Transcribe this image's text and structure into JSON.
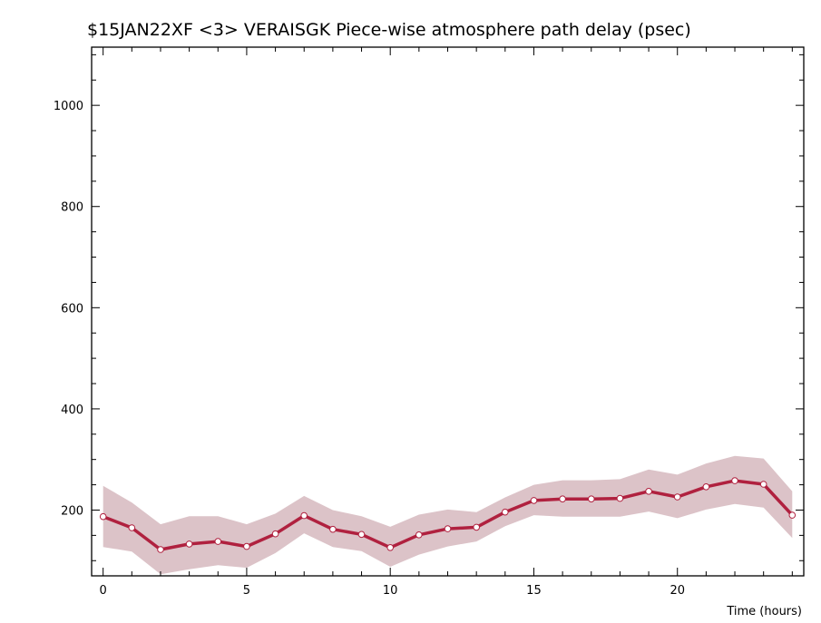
{
  "chart_data": {
    "type": "line",
    "title": "$15JAN22XF <3>  VERAISGK  Piece-wise atmosphere path delay (psec)",
    "xlabel": "Time (hours)",
    "ylabel": "",
    "xlim": [
      -0.4,
      24.4
    ],
    "ylim": [
      70,
      1115
    ],
    "x_ticks": [
      0,
      5,
      10,
      15,
      20
    ],
    "y_ticks": [
      200,
      400,
      600,
      800,
      1000
    ],
    "grid": false,
    "series": [
      {
        "x": [
          0,
          1,
          2,
          3,
          4,
          5,
          6,
          7,
          8,
          9,
          10,
          11,
          12,
          13,
          14,
          15,
          16,
          17,
          18,
          19,
          20,
          21,
          22,
          23,
          24
        ],
        "values": [
          187,
          165,
          122,
          133,
          138,
          128,
          153,
          189,
          162,
          152,
          126,
          151,
          163,
          166,
          196,
          219,
          222,
          222,
          223,
          237,
          226,
          246,
          258,
          251,
          190
        ],
        "upper": [
          248,
          215,
          172,
          188,
          188,
          172,
          193,
          228,
          200,
          188,
          167,
          191,
          201,
          196,
          225,
          250,
          259,
          259,
          261,
          280,
          270,
          292,
          307,
          302,
          237
        ],
        "lower": [
          127,
          118,
          73,
          83,
          91,
          86,
          115,
          154,
          127,
          119,
          88,
          112,
          128,
          138,
          168,
          190,
          187,
          187,
          187,
          197,
          184,
          201,
          212,
          205,
          145
        ]
      }
    ],
    "colors": {
      "line": "#b0213f",
      "band": "#dcc3c8",
      "marker_fill": "#ffffff"
    }
  }
}
